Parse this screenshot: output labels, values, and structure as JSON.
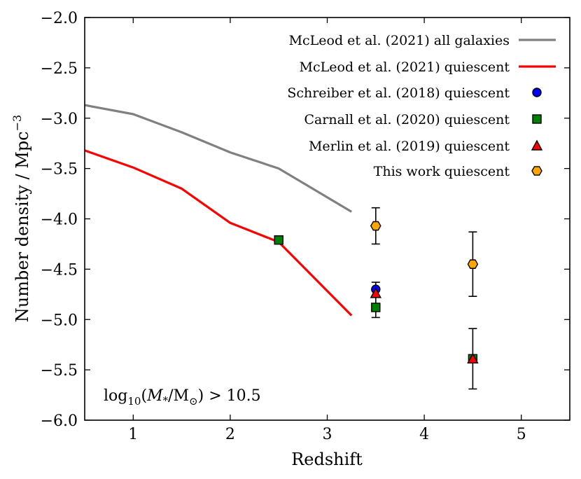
{
  "chart_data": {
    "type": "scatter",
    "xlabel": "Redshift",
    "ylabel_main": "Number density / Mpc",
    "ylabel_sup": "−3",
    "xlim": [
      0.5,
      5.5
    ],
    "ylim": [
      -6.0,
      -2.0
    ],
    "xticks": [
      1,
      2,
      3,
      4,
      5
    ],
    "xtick_labels": [
      "1",
      "2",
      "3",
      "4",
      "5"
    ],
    "yticks": [
      -6.0,
      -5.5,
      -5.0,
      -4.5,
      -4.0,
      -3.5,
      -3.0,
      -2.5,
      -2.0
    ],
    "ytick_labels": [
      "−6.0",
      "−5.5",
      "−5.0",
      "−4.5",
      "−4.0",
      "−3.5",
      "−3.0",
      "−2.5",
      "−2.0"
    ],
    "annotation": {
      "prefix": "log",
      "sub": "10",
      "open": "(",
      "m": "M",
      "m_sub": "*",
      "slash": "/M",
      "sun": "⊙",
      "close": ") > 10.5"
    },
    "legend_location": "top-right",
    "series": [
      {
        "name": "McLeod et al. (2021) all galaxies",
        "kind": "line",
        "color": "#808080",
        "x": [
          0.5,
          1.0,
          1.5,
          2.0,
          2.5,
          3.25
        ],
        "y": [
          -2.87,
          -2.96,
          -3.14,
          -3.34,
          -3.5,
          -3.93
        ]
      },
      {
        "name": "McLeod et al. (2021) quiescent",
        "kind": "line",
        "color": "#ff0000",
        "x": [
          0.5,
          1.0,
          1.5,
          2.0,
          2.5,
          3.25
        ],
        "y": [
          -3.32,
          -3.49,
          -3.7,
          -4.04,
          -4.23,
          -4.96
        ]
      },
      {
        "name": "Schreiber et al. (2018) quiescent",
        "kind": "marker",
        "marker": "circle",
        "color": "#0000ff",
        "points": [
          {
            "x": 3.5,
            "y": -4.7,
            "err": 0.07
          }
        ]
      },
      {
        "name": "Carnall et al. (2020) quiescent",
        "kind": "marker",
        "marker": "square",
        "color": "#008000",
        "points": [
          {
            "x": 2.5,
            "y": -4.21
          },
          {
            "x": 3.5,
            "y": -4.88,
            "err": 0.1
          },
          {
            "x": 4.5,
            "y": -5.39
          }
        ]
      },
      {
        "name": "Merlin et al. (2019) quiescent",
        "kind": "marker",
        "marker": "triangle",
        "color": "#ff0000",
        "points": [
          {
            "x": 3.5,
            "y": -4.74
          },
          {
            "x": 4.5,
            "y": -5.39,
            "err": 0.3
          }
        ]
      },
      {
        "name": "This work quiescent",
        "kind": "marker",
        "marker": "hexagon",
        "color": "#ffa500",
        "points": [
          {
            "x": 3.5,
            "y": -4.07,
            "err": 0.18
          },
          {
            "x": 4.5,
            "y": -4.45,
            "err": 0.32
          }
        ]
      }
    ]
  }
}
